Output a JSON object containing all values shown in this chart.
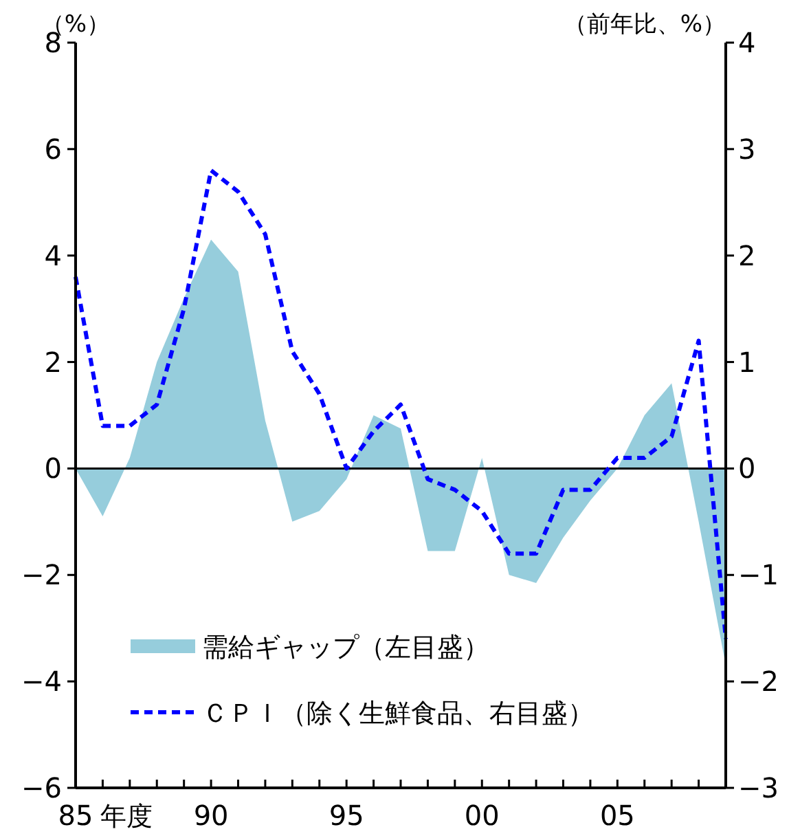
{
  "chart_data": {
    "type": "area",
    "xlabel": "年度",
    "ylabel": "（%）",
    "y2label": "（前年比、%）",
    "x": [
      1985,
      1986,
      1987,
      1988,
      1989,
      1990,
      1991,
      1992,
      1993,
      1994,
      1995,
      1996,
      1997,
      1998,
      1999,
      2000,
      2001,
      2002,
      2003,
      2004,
      2005,
      2006,
      2007,
      2008,
      2009
    ],
    "series": [
      {
        "name": "需給ギャップ（左目盛）",
        "color": "#96cddc",
        "values": [
          0,
          -0.9,
          0.2,
          2.0,
          3.2,
          4.3,
          3.7,
          0.9,
          -1.0,
          -0.8,
          -0.2,
          1.0,
          0.75,
          -1.55,
          -1.55,
          0.2,
          -2.0,
          -2.15,
          -1.3,
          -0.6,
          0,
          1.0,
          1.6,
          -1.0,
          -3.7
        ]
      },
      {
        "name": "ＣＰＩ（除く生鮮食品、右目盛）",
        "type": "line",
        "axis": "y2",
        "line_style": "dashed",
        "color": "#0000ff",
        "values": [
          1.8,
          0.4,
          0.4,
          0.6,
          1.5,
          2.8,
          2.6,
          2.2,
          1.1,
          0.7,
          0,
          0.35,
          0.6,
          -0.1,
          -0.2,
          -0.4,
          -0.8,
          -0.8,
          -0.2,
          -0.2,
          0.1,
          0.1,
          0.3,
          1.2,
          -1.6
        ]
      }
    ],
    "xlim": [
      1985,
      2009
    ],
    "xticks": [
      {
        "value": 1985,
        "label": "85"
      },
      {
        "value": 1986,
        "label": null
      },
      {
        "value": 1987,
        "label": null
      },
      {
        "value": 1988,
        "label": null
      },
      {
        "value": 1989,
        "label": null
      },
      {
        "value": 1990,
        "label": "90"
      },
      {
        "value": 1991,
        "label": null
      },
      {
        "value": 1992,
        "label": null
      },
      {
        "value": 1993,
        "label": null
      },
      {
        "value": 1994,
        "label": null
      },
      {
        "value": 1995,
        "label": "95"
      },
      {
        "value": 1996,
        "label": null
      },
      {
        "value": 1997,
        "label": null
      },
      {
        "value": 1998,
        "label": null
      },
      {
        "value": 1999,
        "label": null
      },
      {
        "value": 2000,
        "label": "00"
      },
      {
        "value": 2001,
        "label": null
      },
      {
        "value": 2002,
        "label": null
      },
      {
        "value": 2003,
        "label": null
      },
      {
        "value": 2004,
        "label": null
      },
      {
        "value": 2005,
        "label": "05"
      },
      {
        "value": 2006,
        "label": null
      },
      {
        "value": 2007,
        "label": null
      },
      {
        "value": 2008,
        "label": null
      },
      {
        "value": 2009,
        "label": null
      }
    ],
    "ylim": [
      -6,
      8
    ],
    "yticks": [
      -6,
      -4,
      -2,
      0,
      2,
      4,
      6,
      8
    ],
    "y2lim": [
      -3,
      4
    ],
    "y2ticks": [
      -3,
      -2,
      -1,
      0,
      1,
      2,
      3,
      4
    ],
    "ref_lines": [
      {
        "axis": "y",
        "value": 0,
        "color": "#000000"
      }
    ],
    "grid": false,
    "legend": "bottom left"
  }
}
